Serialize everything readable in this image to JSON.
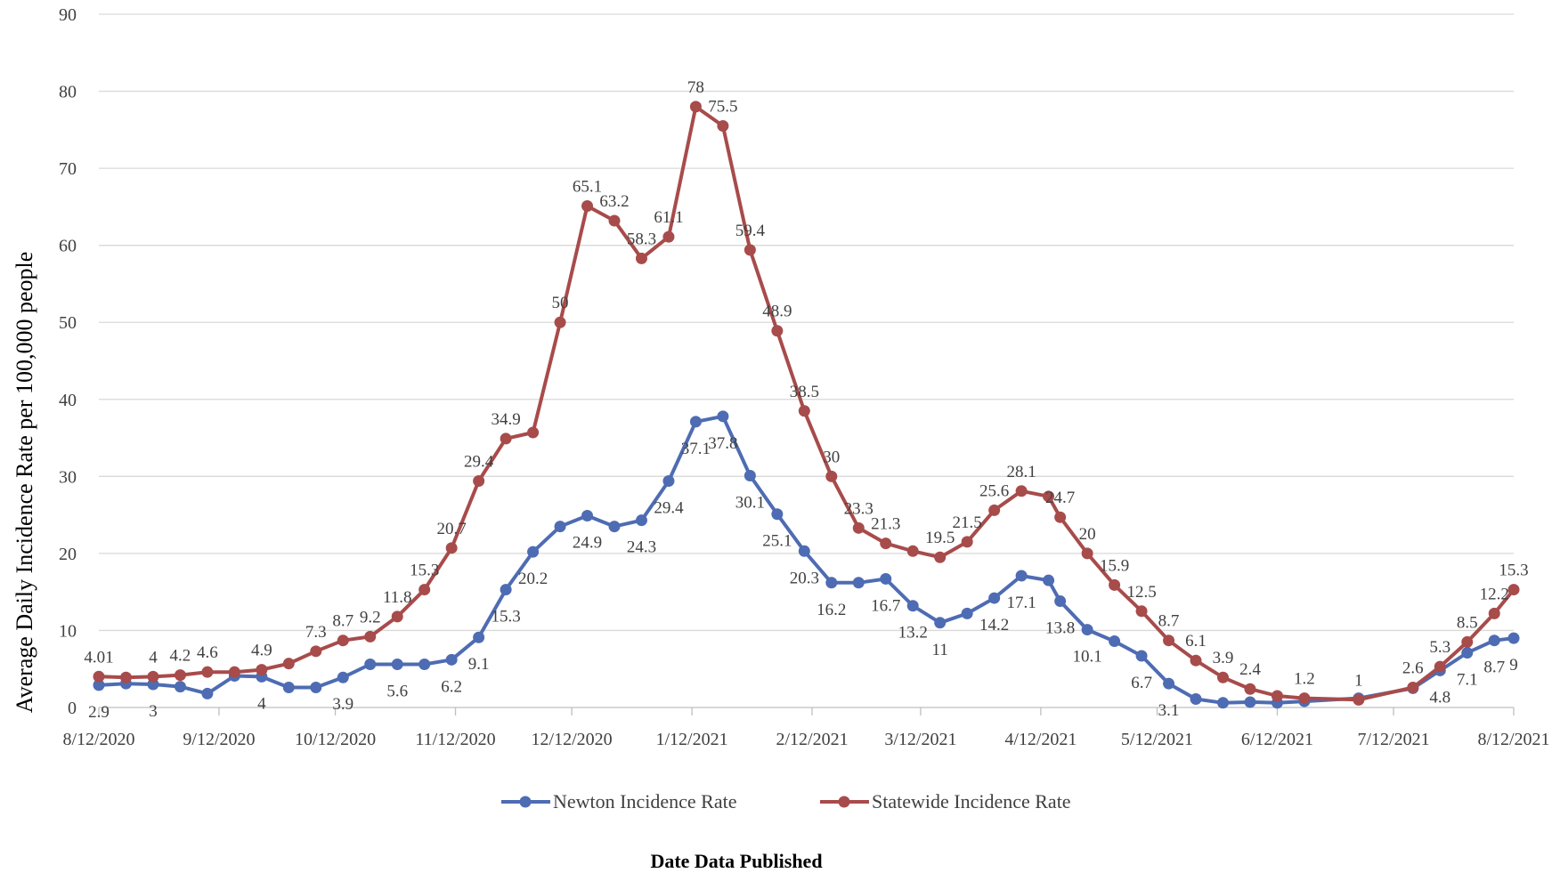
{
  "chart_data": {
    "type": "line",
    "title": "",
    "xlabel": "Date Data Published",
    "ylabel": "Average Daily Incidence Rate per 100,000 people",
    "ylim": [
      0,
      90
    ],
    "yticks": [
      0,
      10,
      20,
      30,
      40,
      50,
      60,
      70,
      80,
      90
    ],
    "xlim": [
      "2020-08-12",
      "2021-08-12"
    ],
    "xtick_labels": [
      {
        "date": "2020-08-12",
        "label": "8/12/2020"
      },
      {
        "date": "2020-09-12",
        "label": "9/12/2020"
      },
      {
        "date": "2020-10-12",
        "label": "10/12/2020"
      },
      {
        "date": "2020-11-12",
        "label": "11/12/2020"
      },
      {
        "date": "2020-12-12",
        "label": "12/12/2020"
      },
      {
        "date": "2021-01-12",
        "label": "1/12/2021"
      },
      {
        "date": "2021-02-12",
        "label": "2/12/2021"
      },
      {
        "date": "2021-03-12",
        "label": "3/12/2021"
      },
      {
        "date": "2021-04-12",
        "label": "4/12/2021"
      },
      {
        "date": "2021-05-12",
        "label": "5/12/2021"
      },
      {
        "date": "2021-06-12",
        "label": "6/12/2021"
      },
      {
        "date": "2021-07-12",
        "label": "7/12/2021"
      },
      {
        "date": "2021-08-12",
        "label": "8/12/2021"
      }
    ],
    "grid": true,
    "legend_position": "bottom",
    "series": [
      {
        "name": "Newton Incidence Rate",
        "color": "#4e6cb3",
        "points": [
          {
            "x": "2020-08-12",
            "y": 2.9,
            "label": "2.9"
          },
          {
            "x": "2020-08-19",
            "y": 3.1,
            "label": ""
          },
          {
            "x": "2020-08-26",
            "y": 3.0,
            "label": "3"
          },
          {
            "x": "2020-09-02",
            "y": 2.7,
            "label": ""
          },
          {
            "x": "2020-09-09",
            "y": 1.8,
            "label": ""
          },
          {
            "x": "2020-09-16",
            "y": 4.1,
            "label": ""
          },
          {
            "x": "2020-09-23",
            "y": 4.0,
            "label": "4"
          },
          {
            "x": "2020-09-30",
            "y": 2.6,
            "label": ""
          },
          {
            "x": "2020-10-07",
            "y": 2.6,
            "label": ""
          },
          {
            "x": "2020-10-14",
            "y": 3.9,
            "label": "3.9"
          },
          {
            "x": "2020-10-21",
            "y": 5.6,
            "label": ""
          },
          {
            "x": "2020-10-28",
            "y": 5.6,
            "label": "5.6"
          },
          {
            "x": "2020-11-04",
            "y": 5.6,
            "label": ""
          },
          {
            "x": "2020-11-11",
            "y": 6.2,
            "label": "6.2"
          },
          {
            "x": "2020-11-18",
            "y": 9.1,
            "label": "9.1"
          },
          {
            "x": "2020-11-25",
            "y": 15.3,
            "label": "15.3"
          },
          {
            "x": "2020-12-02",
            "y": 20.2,
            "label": "20.2"
          },
          {
            "x": "2020-12-09",
            "y": 23.5,
            "label": ""
          },
          {
            "x": "2020-12-16",
            "y": 24.9,
            "label": "24.9"
          },
          {
            "x": "2020-12-23",
            "y": 23.5,
            "label": ""
          },
          {
            "x": "2020-12-30",
            "y": 24.3,
            "label": "24.3"
          },
          {
            "x": "2021-01-06",
            "y": 29.4,
            "label": "29.4"
          },
          {
            "x": "2021-01-13",
            "y": 37.1,
            "label": "37.1"
          },
          {
            "x": "2021-01-20",
            "y": 37.8,
            "label": "37.8"
          },
          {
            "x": "2021-01-27",
            "y": 30.1,
            "label": "30.1"
          },
          {
            "x": "2021-02-03",
            "y": 25.1,
            "label": "25.1"
          },
          {
            "x": "2021-02-10",
            "y": 20.3,
            "label": "20.3"
          },
          {
            "x": "2021-02-17",
            "y": 16.2,
            "label": "16.2"
          },
          {
            "x": "2021-02-24",
            "y": 16.2,
            "label": ""
          },
          {
            "x": "2021-03-03",
            "y": 16.7,
            "label": "16.7"
          },
          {
            "x": "2021-03-10",
            "y": 13.2,
            "label": "13.2"
          },
          {
            "x": "2021-03-17",
            "y": 11.0,
            "label": "11"
          },
          {
            "x": "2021-03-24",
            "y": 12.2,
            "label": ""
          },
          {
            "x": "2021-03-31",
            "y": 14.2,
            "label": "14.2"
          },
          {
            "x": "2021-04-07",
            "y": 17.1,
            "label": "17.1"
          },
          {
            "x": "2021-04-14",
            "y": 16.5,
            "label": ""
          },
          {
            "x": "2021-04-17",
            "y": 13.8,
            "label": "13.8"
          },
          {
            "x": "2021-04-24",
            "y": 10.1,
            "label": "10.1"
          },
          {
            "x": "2021-05-01",
            "y": 8.6,
            "label": ""
          },
          {
            "x": "2021-05-08",
            "y": 6.7,
            "label": "6.7"
          },
          {
            "x": "2021-05-15",
            "y": 3.1,
            "label": "3.1"
          },
          {
            "x": "2021-05-22",
            "y": 1.1,
            "label": ""
          },
          {
            "x": "2021-05-29",
            "y": 0.6,
            "label": ""
          },
          {
            "x": "2021-06-05",
            "y": 0.7,
            "label": ""
          },
          {
            "x": "2021-06-12",
            "y": 0.6,
            "label": ""
          },
          {
            "x": "2021-06-19",
            "y": 0.8,
            "label": ""
          },
          {
            "x": "2021-07-03",
            "y": 1.2,
            "label": ""
          },
          {
            "x": "2021-07-17",
            "y": 2.5,
            "label": ""
          },
          {
            "x": "2021-07-24",
            "y": 4.8,
            "label": "4.8"
          },
          {
            "x": "2021-07-31",
            "y": 7.1,
            "label": "7.1"
          },
          {
            "x": "2021-08-07",
            "y": 8.7,
            "label": "8.7"
          },
          {
            "x": "2021-08-12",
            "y": 9.0,
            "label": "9"
          }
        ]
      },
      {
        "name": "Statewide Incidence Rate",
        "color": "#a84b4b",
        "points": [
          {
            "x": "2020-08-12",
            "y": 4.01,
            "label": "4.01"
          },
          {
            "x": "2020-08-19",
            "y": 3.9,
            "label": ""
          },
          {
            "x": "2020-08-26",
            "y": 4.0,
            "label": "4"
          },
          {
            "x": "2020-09-02",
            "y": 4.2,
            "label": "4.2"
          },
          {
            "x": "2020-09-09",
            "y": 4.6,
            "label": "4.6"
          },
          {
            "x": "2020-09-16",
            "y": 4.6,
            "label": ""
          },
          {
            "x": "2020-09-23",
            "y": 4.9,
            "label": "4.9"
          },
          {
            "x": "2020-09-30",
            "y": 5.7,
            "label": ""
          },
          {
            "x": "2020-10-07",
            "y": 7.3,
            "label": "7.3"
          },
          {
            "x": "2020-10-14",
            "y": 8.7,
            "label": "8.7"
          },
          {
            "x": "2020-10-21",
            "y": 9.2,
            "label": "9.2"
          },
          {
            "x": "2020-10-28",
            "y": 11.8,
            "label": "11.8"
          },
          {
            "x": "2020-11-04",
            "y": 15.3,
            "label": "15.3"
          },
          {
            "x": "2020-11-11",
            "y": 20.7,
            "label": "20.7"
          },
          {
            "x": "2020-11-18",
            "y": 29.4,
            "label": "29.4"
          },
          {
            "x": "2020-11-25",
            "y": 34.9,
            "label": "34.9"
          },
          {
            "x": "2020-12-02",
            "y": 35.7,
            "label": ""
          },
          {
            "x": "2020-12-09",
            "y": 50.0,
            "label": "50"
          },
          {
            "x": "2020-12-16",
            "y": 65.1,
            "label": "65.1"
          },
          {
            "x": "2020-12-23",
            "y": 63.2,
            "label": "63.2"
          },
          {
            "x": "2020-12-30",
            "y": 58.3,
            "label": "58.3"
          },
          {
            "x": "2021-01-06",
            "y": 61.1,
            "label": "61.1"
          },
          {
            "x": "2021-01-13",
            "y": 78.0,
            "label": "78"
          },
          {
            "x": "2021-01-20",
            "y": 75.5,
            "label": "75.5"
          },
          {
            "x": "2021-01-27",
            "y": 59.4,
            "label": "59.4"
          },
          {
            "x": "2021-02-03",
            "y": 48.9,
            "label": "48.9"
          },
          {
            "x": "2021-02-10",
            "y": 38.5,
            "label": "38.5"
          },
          {
            "x": "2021-02-17",
            "y": 30.0,
            "label": "30"
          },
          {
            "x": "2021-02-24",
            "y": 23.3,
            "label": "23.3"
          },
          {
            "x": "2021-03-03",
            "y": 21.3,
            "label": "21.3"
          },
          {
            "x": "2021-03-10",
            "y": 20.3,
            "label": ""
          },
          {
            "x": "2021-03-17",
            "y": 19.5,
            "label": "19.5"
          },
          {
            "x": "2021-03-24",
            "y": 21.5,
            "label": "21.5"
          },
          {
            "x": "2021-03-31",
            "y": 25.6,
            "label": "25.6"
          },
          {
            "x": "2021-04-07",
            "y": 28.1,
            "label": "28.1"
          },
          {
            "x": "2021-04-14",
            "y": 27.4,
            "label": ""
          },
          {
            "x": "2021-04-17",
            "y": 24.7,
            "label": "24.7"
          },
          {
            "x": "2021-04-24",
            "y": 20.0,
            "label": "20"
          },
          {
            "x": "2021-05-01",
            "y": 15.9,
            "label": "15.9"
          },
          {
            "x": "2021-05-08",
            "y": 12.5,
            "label": "12.5"
          },
          {
            "x": "2021-05-15",
            "y": 8.7,
            "label": "8.7"
          },
          {
            "x": "2021-05-22",
            "y": 6.1,
            "label": "6.1"
          },
          {
            "x": "2021-05-29",
            "y": 3.9,
            "label": "3.9"
          },
          {
            "x": "2021-06-05",
            "y": 2.4,
            "label": "2.4"
          },
          {
            "x": "2021-06-12",
            "y": 1.5,
            "label": ""
          },
          {
            "x": "2021-06-19",
            "y": 1.2,
            "label": "1.2"
          },
          {
            "x": "2021-07-03",
            "y": 1.0,
            "label": "1"
          },
          {
            "x": "2021-07-17",
            "y": 2.6,
            "label": "2.6"
          },
          {
            "x": "2021-07-24",
            "y": 5.3,
            "label": "5.3"
          },
          {
            "x": "2021-07-31",
            "y": 8.5,
            "label": "8.5"
          },
          {
            "x": "2021-08-07",
            "y": 12.2,
            "label": "12.2"
          },
          {
            "x": "2021-08-12",
            "y": 15.3,
            "label": "15.3"
          }
        ]
      }
    ]
  }
}
